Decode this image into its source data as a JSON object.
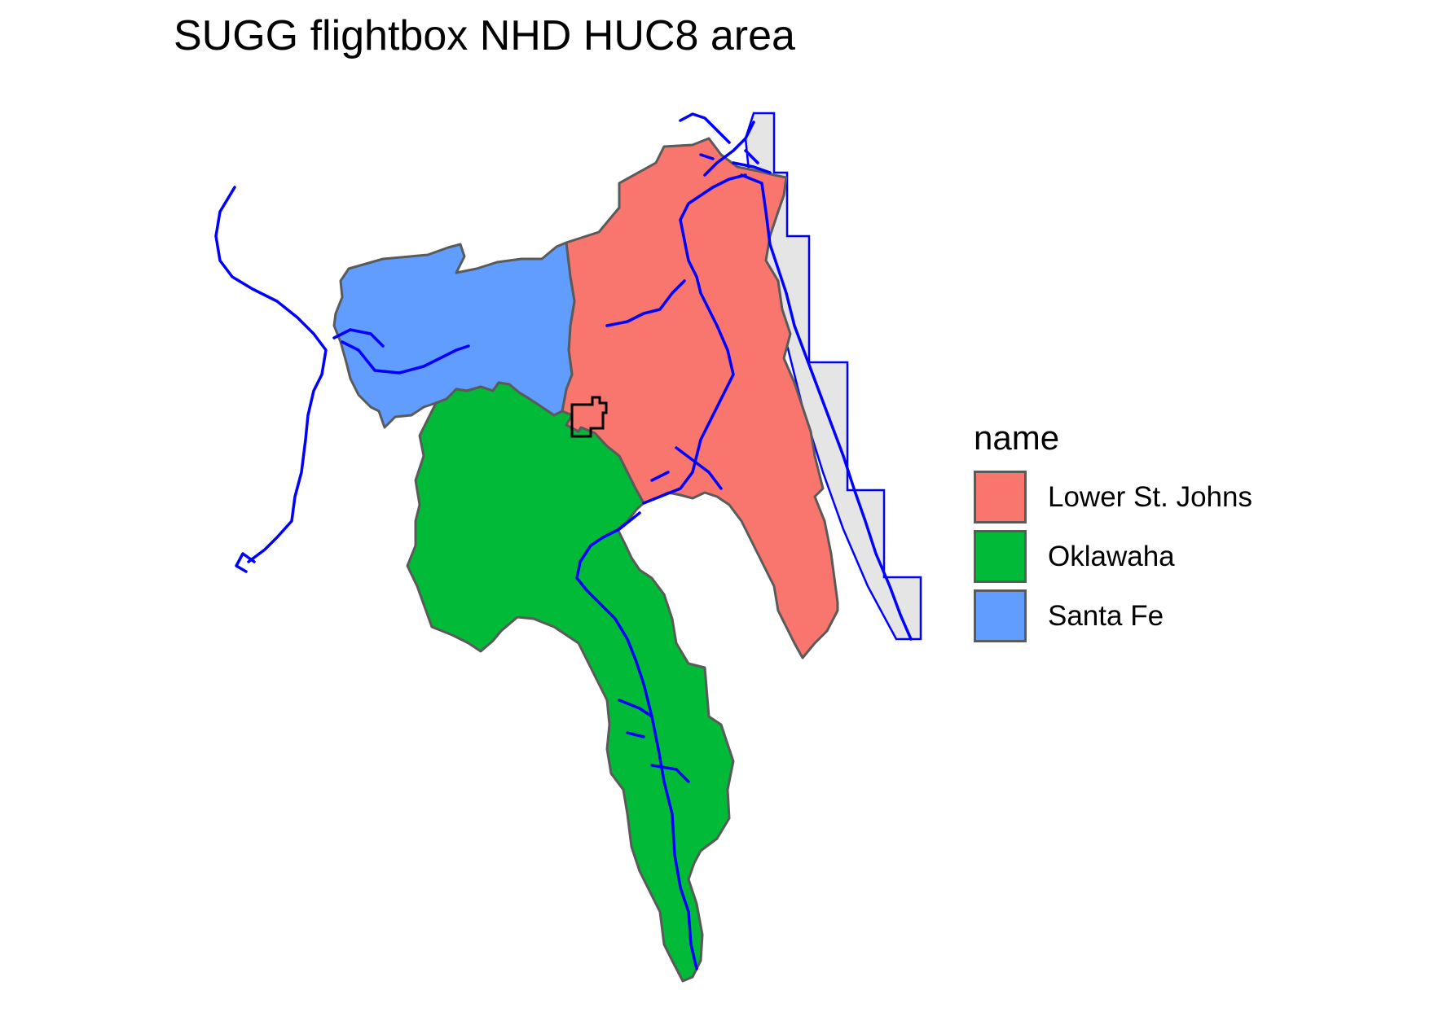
{
  "title": "SUGG flightbox NHD HUC8 area",
  "legend": {
    "title": "name",
    "items": [
      {
        "label": "Lower St. Johns",
        "color": "#F8766D"
      },
      {
        "label": "Oklawaha",
        "color": "#00BA38"
      },
      {
        "label": "Santa Fe",
        "color": "#619CFF"
      }
    ]
  },
  "styles": {
    "huc8_outline": "#5a5a5a",
    "flowlines": "#0000FF",
    "flightbox_fill": "#E5E5E5",
    "flightbox_outline": "#0000FF",
    "site_outline": "#000000"
  }
}
